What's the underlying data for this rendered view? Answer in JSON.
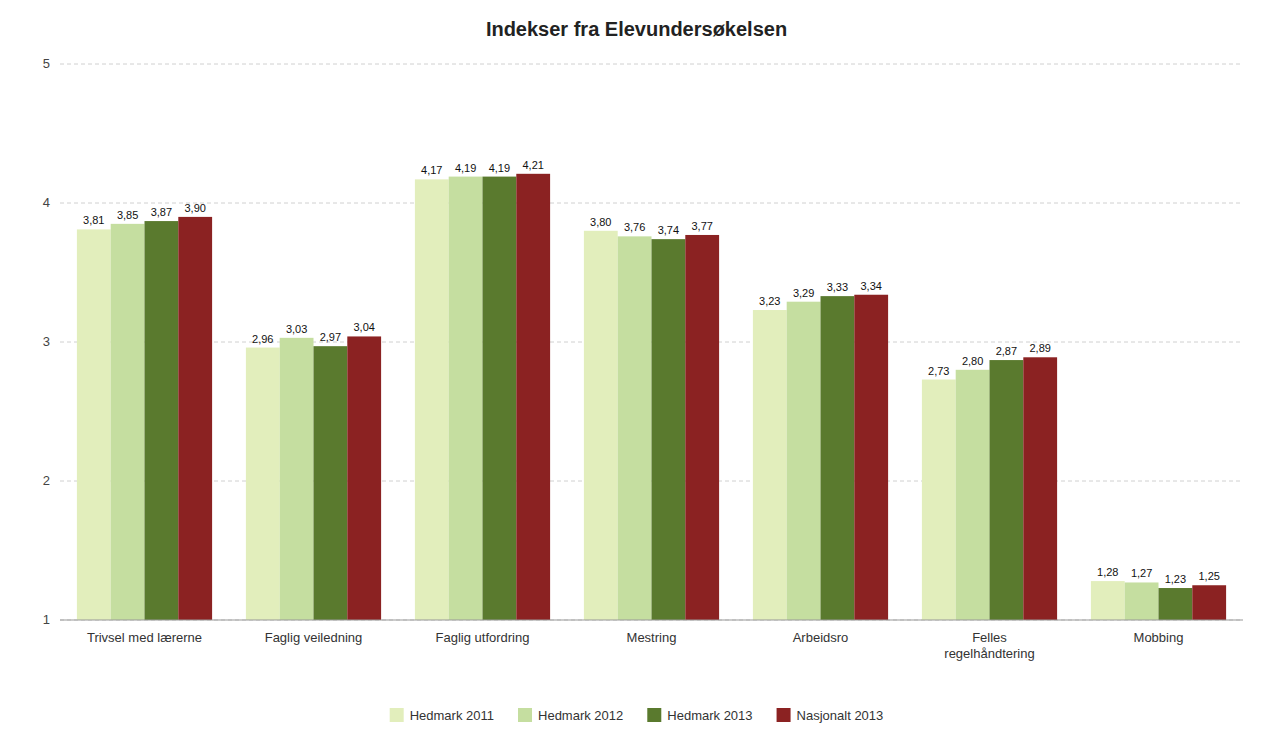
{
  "chart_data": {
    "type": "bar",
    "title": "Indekser fra Elevundersøkelsen",
    "categories": [
      "Trivsel med lærerne",
      "Faglig veiledning",
      "Faglig utfordring",
      "Mestring",
      "Arbeidsro",
      "Felles\nregelhåndtering",
      "Mobbing"
    ],
    "series": [
      {
        "name": "Hedmark 2011",
        "color": "#e2eebc",
        "values": [
          3.81,
          2.96,
          4.17,
          3.8,
          3.23,
          2.73,
          1.28
        ],
        "value_labels": [
          "3,81",
          "2,96",
          "4,17",
          "3,80",
          "3,23",
          "2,73",
          "1,28"
        ]
      },
      {
        "name": "Hedmark 2012",
        "color": "#c5dea0",
        "values": [
          3.85,
          3.03,
          4.19,
          3.76,
          3.29,
          2.8,
          1.27
        ],
        "value_labels": [
          "3,85",
          "3,03",
          "4,19",
          "3,76",
          "3,29",
          "2,80",
          "1,27"
        ]
      },
      {
        "name": "Hedmark 2013",
        "color": "#5a7a2e",
        "values": [
          3.87,
          2.97,
          4.19,
          3.74,
          3.33,
          2.87,
          1.23
        ],
        "value_labels": [
          "3,87",
          "2,97",
          "4,19",
          "3,74",
          "3,33",
          "2,87",
          "1,23"
        ]
      },
      {
        "name": "Nasjonalt 2013",
        "color": "#8b2222",
        "values": [
          3.9,
          3.04,
          4.21,
          3.77,
          3.34,
          2.89,
          1.25
        ],
        "value_labels": [
          "3,90",
          "3,04",
          "4,21",
          "3,77",
          "3,34",
          "2,89",
          "1,25"
        ]
      }
    ],
    "ylim": [
      1,
      5
    ],
    "yticks": [
      1,
      2,
      3,
      4,
      5
    ],
    "grid": true,
    "legend": "bottom",
    "data_labels": true
  }
}
